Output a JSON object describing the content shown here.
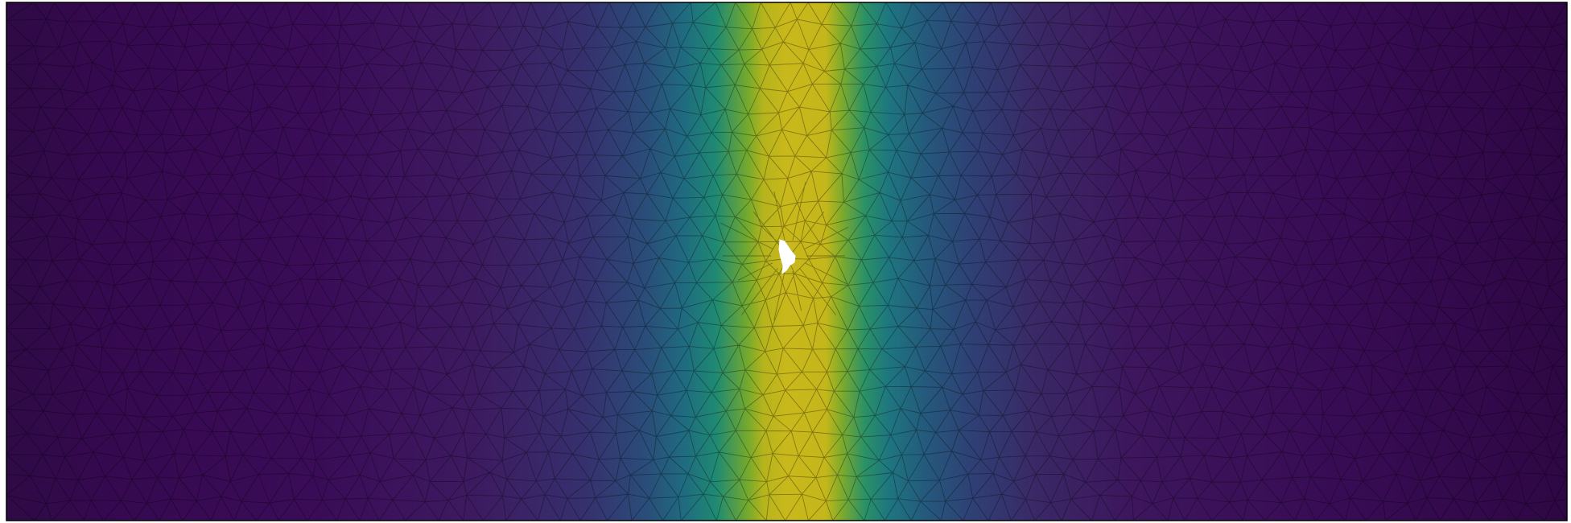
{
  "figure": {
    "kind": "finite-element triangular mesh with scalar field",
    "colormap": "viridis",
    "colors": {
      "low": "#440154",
      "low_mid": "#3b528b",
      "mid": "#21918c",
      "high_mid": "#5ec962",
      "high": "#c8b81a",
      "edge": "#000000",
      "background": "#ffffff",
      "border": "#000000"
    },
    "field": {
      "peak_center_fraction": 0.5,
      "band_width_fraction": 0.095,
      "max_value": 1.0,
      "min_value": 0.0
    },
    "hole": {
      "present": true,
      "color": "#ffffff"
    }
  }
}
